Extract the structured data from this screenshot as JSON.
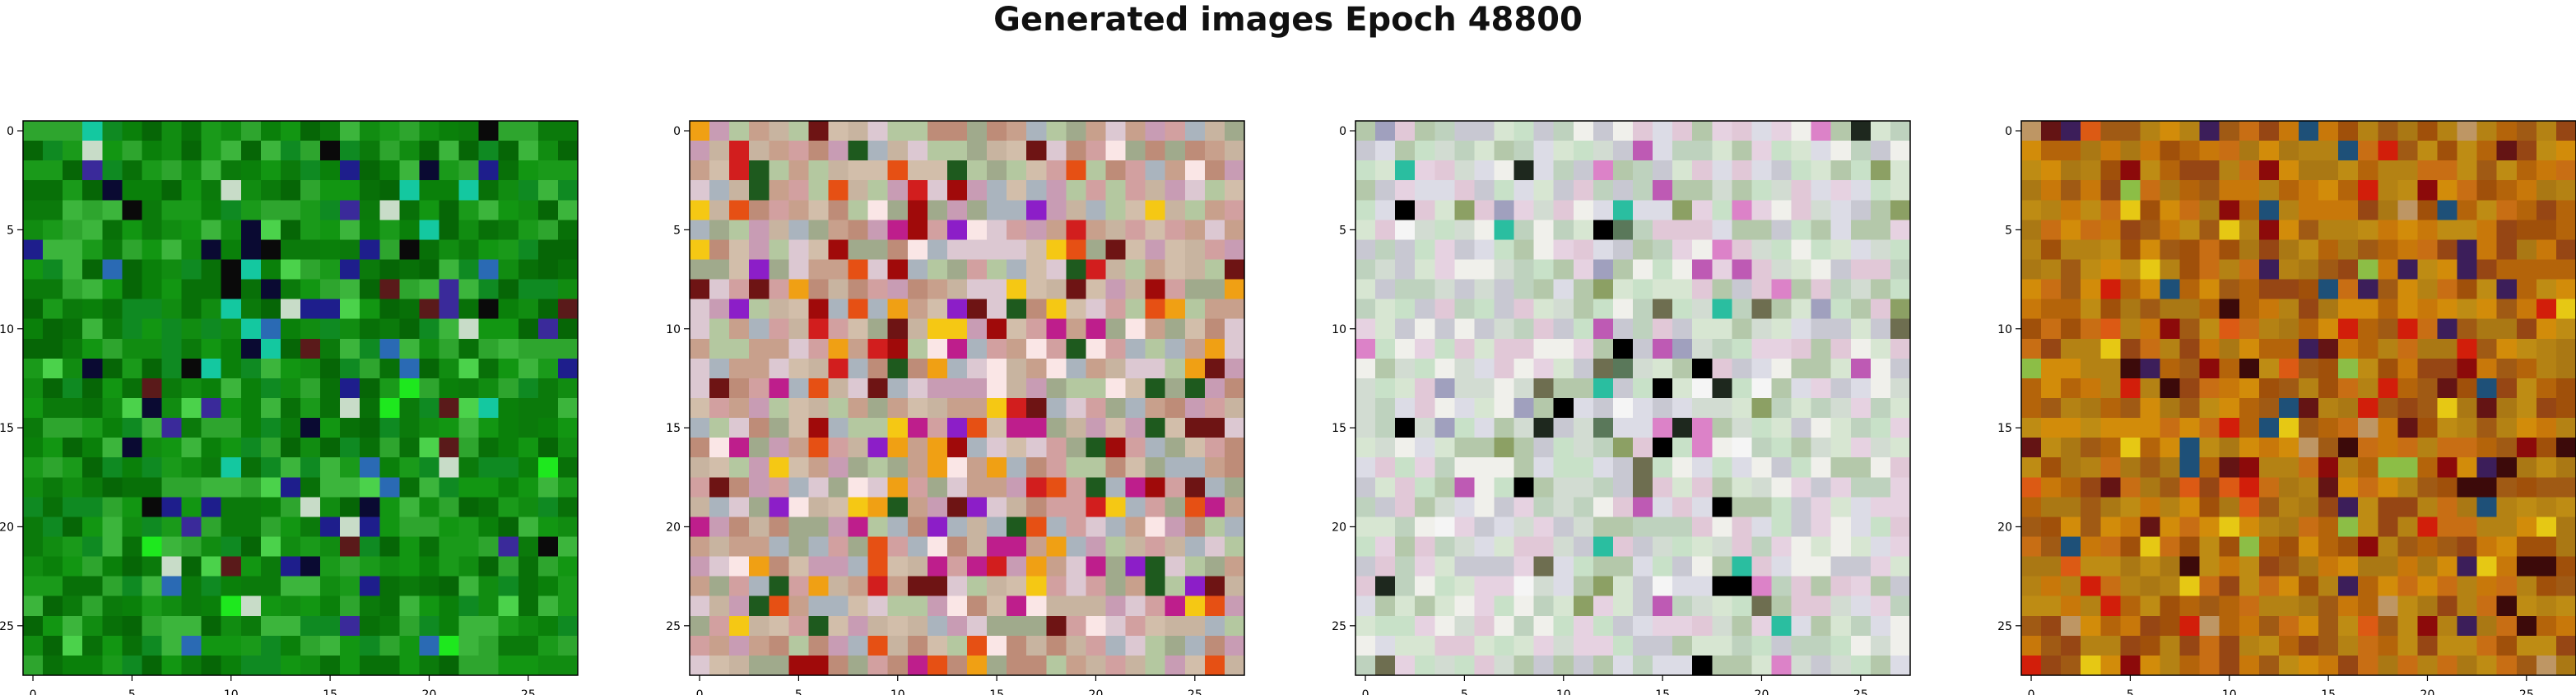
{
  "figure": {
    "title": "Generated images Epoch 48800"
  },
  "chart_data": {
    "type": "heatmap",
    "description_of_content": "",
    "grid_size": 28,
    "xlim": [
      -0.5,
      27.5
    ],
    "ylim": [
      27.5,
      -0.5
    ],
    "x_ticks": [
      0,
      5,
      10,
      15,
      20,
      25
    ],
    "y_ticks": [
      0,
      5,
      10,
      15,
      20,
      25
    ],
    "panels": [
      {
        "palette": [
          "#0b7a0b",
          "#118c11",
          "#087008",
          "#1a9a1a",
          "#0f8a22",
          "#2ea52e",
          "#066606",
          "#129612",
          "#0a800a",
          "#3cb53c"
        ],
        "accents": [
          "#1e1e8c",
          "#0a0a32",
          "#3a2a9a",
          "#5a1a1a",
          "#1ee81e",
          "#14c8a0",
          "#2a6ab4",
          "#c8dcc8",
          "#0a0a0a",
          "#4bd24b"
        ],
        "accent_rate": 0.14,
        "seed": 11
      },
      {
        "palette": [
          "#c8b4a0",
          "#d2a0a0",
          "#b4c8a0",
          "#c89cb4",
          "#d2beaa",
          "#a0aa8c",
          "#dcc8d2",
          "#be8c78",
          "#aab4be",
          "#c8a08c"
        ],
        "accents": [
          "#f0a014",
          "#e65014",
          "#d21e1e",
          "#f5c814",
          "#a00a0a",
          "#be1e8c",
          "#8c1ec8",
          "#fae6e6",
          "#1e5a1e",
          "#6e1414"
        ],
        "accent_rate": 0.22,
        "seed": 23
      },
      {
        "palette": [
          "#d2dcd2",
          "#e6d2e1",
          "#c8e1c8",
          "#dcdce6",
          "#bed2be",
          "#e1c8d7",
          "#f0f0eb",
          "#c8c8d2",
          "#d7e6d2",
          "#b4c8aa"
        ],
        "accents": [
          "#be5ab4",
          "#8ca064",
          "#1e281e",
          "#2abea0",
          "#6e6e50",
          "#dc82c8",
          "#000000",
          "#a0a0be",
          "#5a785a",
          "#f5f5f5"
        ],
        "accent_rate": 0.12,
        "seed": 37
      },
      {
        "palette": [
          "#b4640a",
          "#c8780a",
          "#a0500a",
          "#be8c14",
          "#aa7814",
          "#d28c0a",
          "#964614",
          "#c86e14",
          "#b48214",
          "#a05a14"
        ],
        "accents": [
          "#d21e0a",
          "#8c0a0a",
          "#3c0a0a",
          "#e6c814",
          "#8cbe46",
          "#3c1e5a",
          "#1e5078",
          "#dc5a14",
          "#be9664",
          "#641414"
        ],
        "accent_rate": 0.16,
        "seed": 53
      }
    ]
  }
}
